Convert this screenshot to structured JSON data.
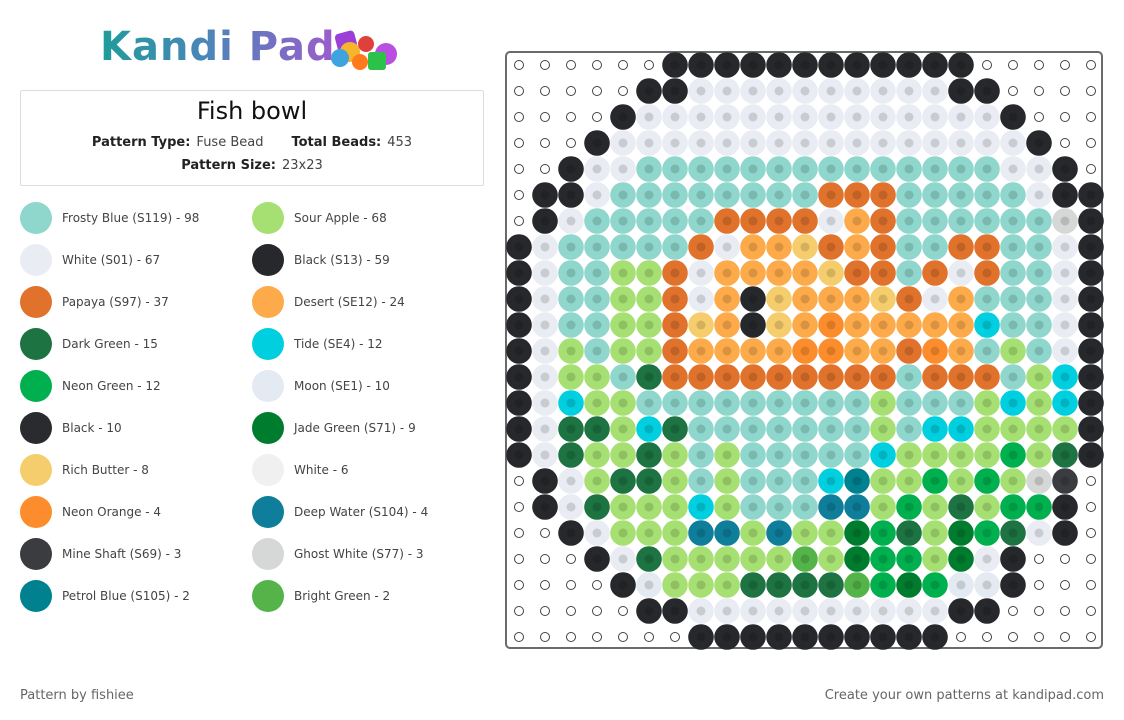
{
  "logo": "Kandi Pad",
  "header": {
    "title": "Fish bowl",
    "pattern_type_label": "Pattern Type:",
    "pattern_type": "Fuse Bead",
    "total_beads_label": "Total Beads:",
    "total_beads": "453",
    "pattern_size_label": "Pattern Size:",
    "pattern_size": "23x23"
  },
  "legend": [
    {
      "label": "Frosty Blue (S119) - 98",
      "color": "#8fd6cc"
    },
    {
      "label": "Sour Apple - 68",
      "color": "#a6e072"
    },
    {
      "label": "White (S01) - 67",
      "color": "#e9edf3"
    },
    {
      "label": "Black (S13) - 59",
      "color": "#27282b"
    },
    {
      "label": "Papaya (S97) - 37",
      "color": "#e0722c"
    },
    {
      "label": "Desert (SE12) - 24",
      "color": "#fdab4a"
    },
    {
      "label": "Dark Green - 15",
      "color": "#1d7342"
    },
    {
      "label": "Tide (SE4) - 12",
      "color": "#00cfe0"
    },
    {
      "label": "Neon Green - 12",
      "color": "#00b04e"
    },
    {
      "label": "Moon (SE1) - 10",
      "color": "#e3eaf2"
    },
    {
      "label": "Black - 10",
      "color": "#2a2b2e"
    },
    {
      "label": "Jade Green (S71) - 9",
      "color": "#007c2e"
    },
    {
      "label": "Rich Butter - 8",
      "color": "#f6cd6c"
    },
    {
      "label": "White - 6",
      "color": "#f0f0f0"
    },
    {
      "label": "Neon Orange - 4",
      "color": "#fd8d2c"
    },
    {
      "label": "Deep Water (S104) - 4",
      "color": "#0e7e9a"
    },
    {
      "label": "Mine Shaft (S69) - 3",
      "color": "#3a3c40"
    },
    {
      "label": "Ghost White (S77) - 3",
      "color": "#d5d8d6"
    },
    {
      "label": "Petrol Blue (S105) - 2",
      "color": "#00818f"
    },
    {
      "label": "Bright Green - 2",
      "color": "#54b44a"
    }
  ],
  "footer": {
    "credit": "Pattern by fishiee",
    "link": "Create your own patterns at kandipad.com"
  }
}
